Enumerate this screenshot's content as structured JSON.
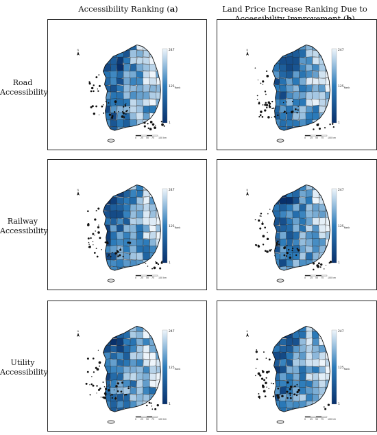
{
  "columns": {
    "a": {
      "text": "Accessibility Ranking (",
      "bold": "a",
      "suffix": ")"
    },
    "b": {
      "line1": "Land Price Increase Ranking Due to",
      "line2": "Accessibility Improvement (",
      "bold": "b",
      "suffix": ")"
    }
  },
  "rows": [
    {
      "line1": "Road",
      "line2": "Accessibility"
    },
    {
      "line1": "Railway",
      "line2": "Accessibility"
    },
    {
      "line1": "Utility",
      "line2": "Accessibility"
    }
  ],
  "legend": {
    "max": "247",
    "mid": "125",
    "mid_sub": "Rank",
    "min": "1"
  },
  "scale": {
    "ticks": [
      "0",
      "25",
      "50",
      "75",
      "100 km"
    ]
  },
  "colors": {
    "dark": "#08306b",
    "mid": "#2b7bba",
    "light": "#eef5fb",
    "border": "#222222"
  }
}
